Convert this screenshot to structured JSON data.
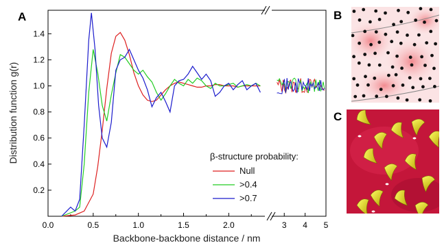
{
  "panels": {
    "a": "A",
    "b": "B",
    "c": "C"
  },
  "chart_data": {
    "type": "line",
    "xlabel": "Backbone-backbone distance / nm",
    "ylabel": "Distribution function g(r)",
    "x_axis_break": true,
    "segments": [
      {
        "xlim": [
          0.0,
          2.4
        ],
        "xticks": [
          "0.0",
          "0.5",
          "1.0",
          "1.5",
          "2.0"
        ]
      },
      {
        "xlim": [
          2.4,
          5.0
        ],
        "xticks": [
          "3",
          "4",
          "5"
        ]
      }
    ],
    "ylim": [
      0.0,
      1.58
    ],
    "yticks": [
      "0.2",
      "0.4",
      "0.6",
      "0.8",
      "1.0",
      "1.2",
      "1.4"
    ],
    "legend": {
      "title": "β-structure probability:",
      "position": "bottom-right"
    },
    "grid": false,
    "series": [
      {
        "name": "Null",
        "color": "#dd1f1f",
        "x": [
          0.15,
          0.3,
          0.4,
          0.5,
          0.55,
          0.6,
          0.65,
          0.7,
          0.75,
          0.8,
          0.85,
          0.9,
          0.95,
          1.0,
          1.05,
          1.1,
          1.15,
          1.2,
          1.25,
          1.3,
          1.35,
          1.4,
          1.45,
          1.5,
          1.55,
          1.6,
          1.65,
          1.7,
          1.75,
          1.8,
          1.85,
          1.9,
          1.95,
          2.0,
          2.05,
          2.1,
          2.15,
          2.2,
          2.25,
          2.3,
          2.35
        ],
        "y": [
          0.0,
          0.01,
          0.04,
          0.17,
          0.38,
          0.66,
          0.98,
          1.25,
          1.38,
          1.41,
          1.35,
          1.24,
          1.1,
          1.0,
          0.93,
          0.89,
          0.88,
          0.89,
          0.93,
          0.97,
          1.0,
          1.02,
          1.03,
          1.02,
          1.01,
          1.0,
          0.99,
          0.99,
          1.0,
          1.0,
          1.01,
          1.01,
          1.0,
          1.0,
          1.0,
          0.99,
          1.0,
          1.0,
          1.0,
          1.0,
          1.0
        ]
      },
      {
        "name": ">0.4",
        "color": "#22cc22",
        "x": [
          0.15,
          0.3,
          0.35,
          0.4,
          0.45,
          0.5,
          0.55,
          0.6,
          0.65,
          0.7,
          0.75,
          0.8,
          0.85,
          0.9,
          0.95,
          1.0,
          1.05,
          1.1,
          1.15,
          1.2,
          1.25,
          1.3,
          1.35,
          1.4,
          1.45,
          1.5,
          1.55,
          1.6,
          1.65,
          1.7,
          1.75,
          1.8,
          1.85,
          1.9,
          1.95,
          2.0,
          2.05,
          2.1,
          2.15,
          2.2,
          2.25,
          2.3,
          2.35
        ],
        "y": [
          0.0,
          0.04,
          0.07,
          0.4,
          0.95,
          1.28,
          1.1,
          0.85,
          0.73,
          0.93,
          1.1,
          1.24,
          1.22,
          1.17,
          1.12,
          1.09,
          1.12,
          1.07,
          1.03,
          0.95,
          0.89,
          0.94,
          1.0,
          1.05,
          1.02,
          1.0,
          1.05,
          1.02,
          1.06,
          1.04,
          1.0,
          0.98,
          1.02,
          1.0,
          1.0,
          1.01,
          1.02,
          0.99,
          1.0,
          1.01,
          1.0,
          1.02,
          1.0
        ]
      },
      {
        "name": ">0.7",
        "color": "#1a1acc",
        "x": [
          0.15,
          0.25,
          0.3,
          0.35,
          0.4,
          0.45,
          0.48,
          0.52,
          0.56,
          0.6,
          0.65,
          0.7,
          0.75,
          0.8,
          0.85,
          0.9,
          0.95,
          1.0,
          1.05,
          1.1,
          1.15,
          1.2,
          1.25,
          1.3,
          1.35,
          1.4,
          1.45,
          1.5,
          1.55,
          1.6,
          1.65,
          1.7,
          1.75,
          1.8,
          1.85,
          1.9,
          1.95,
          2.0,
          2.05,
          2.1,
          2.15,
          2.2,
          2.25,
          2.3,
          2.35
        ],
        "y": [
          0.0,
          0.07,
          0.04,
          0.13,
          0.7,
          1.35,
          1.56,
          1.28,
          0.85,
          0.6,
          0.53,
          0.72,
          1.12,
          1.2,
          1.22,
          1.28,
          1.2,
          1.12,
          1.06,
          0.97,
          0.84,
          0.91,
          0.95,
          0.88,
          0.8,
          1.0,
          1.04,
          1.05,
          1.09,
          1.15,
          1.1,
          1.05,
          1.09,
          1.04,
          0.92,
          0.95,
          1.0,
          1.02,
          0.97,
          1.01,
          1.04,
          0.97,
          1.0,
          1.02,
          0.95
        ]
      }
    ],
    "tail_segment_note": "noisy region around g(r)=1.0 for x 2.6-5"
  },
  "tail_amplitude": 0.06
}
